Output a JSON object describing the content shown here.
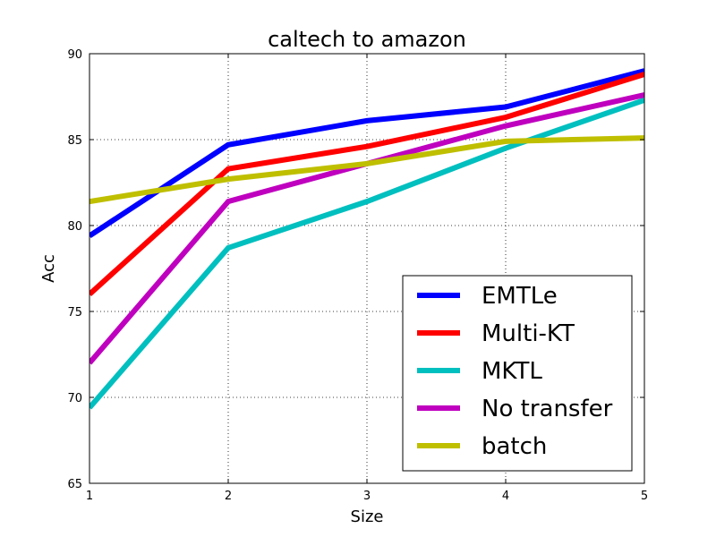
{
  "chart_data": {
    "type": "line",
    "title": "caltech to amazon",
    "xlabel": "Size",
    "ylabel": "Acc",
    "x": [
      1,
      2,
      3,
      4,
      5
    ],
    "xlim": [
      1,
      5
    ],
    "ylim": [
      65,
      90
    ],
    "xticks": [
      "1",
      "2",
      "3",
      "4",
      "5"
    ],
    "yticks": [
      "65",
      "70",
      "75",
      "80",
      "85",
      "90"
    ],
    "grid": true,
    "legend_position": "lower-right",
    "series": [
      {
        "name": "EMTLe",
        "color": "#0000ff",
        "values": [
          79.4,
          84.7,
          86.1,
          86.9,
          89.0
        ]
      },
      {
        "name": "Multi-KT",
        "color": "#ff0000",
        "values": [
          76.0,
          83.3,
          84.6,
          86.3,
          88.8
        ]
      },
      {
        "name": "MKTL",
        "color": "#00bfbf",
        "values": [
          69.4,
          78.7,
          81.4,
          84.5,
          87.3
        ]
      },
      {
        "name": "No transfer",
        "color": "#bf00bf",
        "values": [
          72.0,
          81.4,
          83.6,
          85.8,
          87.6
        ]
      },
      {
        "name": "batch",
        "color": "#bfbf00",
        "values": [
          81.4,
          82.7,
          83.6,
          84.9,
          85.1
        ]
      }
    ]
  }
}
